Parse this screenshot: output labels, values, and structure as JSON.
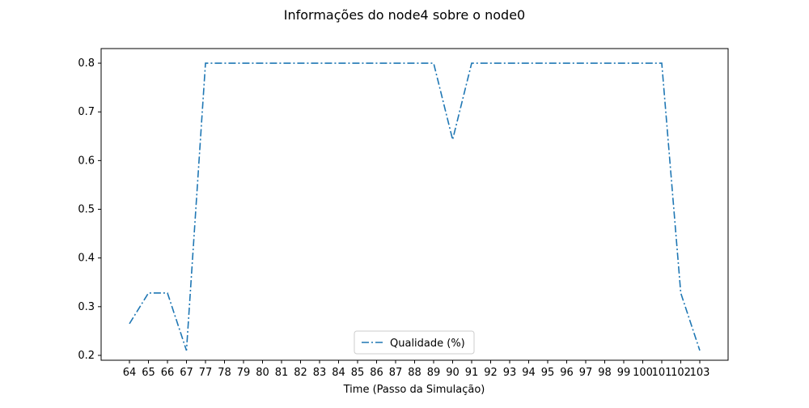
{
  "chart_data": {
    "type": "line",
    "title": "Informações do node4 sobre o node0",
    "xlabel": "Time (Passo da Simulação)",
    "ylabel": "",
    "categories": [
      "64",
      "65",
      "66",
      "67",
      "77",
      "78",
      "79",
      "80",
      "81",
      "82",
      "83",
      "84",
      "85",
      "86",
      "87",
      "88",
      "89",
      "90",
      "91",
      "92",
      "93",
      "94",
      "95",
      "96",
      "97",
      "98",
      "99",
      "100",
      "101",
      "102",
      "103"
    ],
    "series": [
      {
        "name": "Qualidade (%)",
        "color": "#1f77b4",
        "line_style": "dash-dot",
        "values": [
          0.265,
          0.328,
          0.328,
          0.21,
          0.8,
          0.8,
          0.8,
          0.8,
          0.8,
          0.8,
          0.8,
          0.8,
          0.8,
          0.8,
          0.8,
          0.8,
          0.8,
          0.643,
          0.8,
          0.8,
          0.8,
          0.8,
          0.8,
          0.8,
          0.8,
          0.8,
          0.8,
          0.8,
          0.8,
          0.328,
          0.21
        ]
      }
    ],
    "yticks": [
      "0.2",
      "0.3",
      "0.4",
      "0.5",
      "0.6",
      "0.7",
      "0.8"
    ],
    "ylim": [
      0.19,
      0.83
    ],
    "grid": false,
    "legend_position": "lower center"
  }
}
